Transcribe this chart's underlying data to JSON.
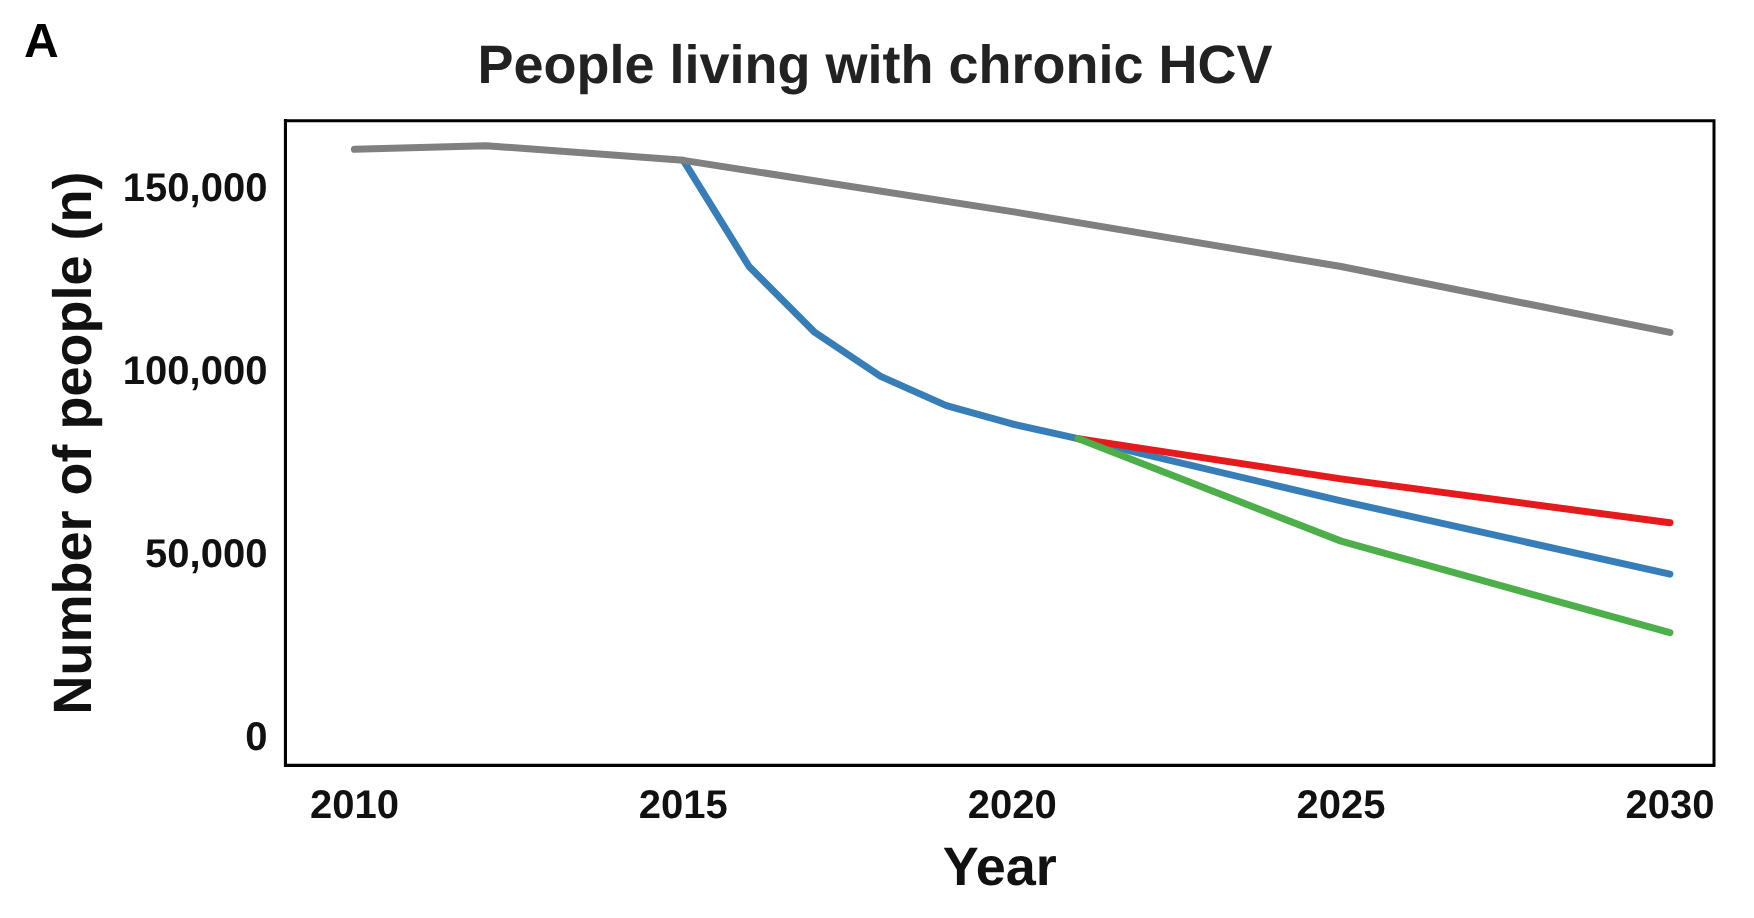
{
  "chart_data": {
    "type": "line",
    "title": "People living with chronic HCV",
    "xlabel": "Year",
    "ylabel": "Number of people (n)",
    "annotations": [
      "A"
    ],
    "xlim": [
      2008.95,
      2030.67
    ],
    "xticks": [
      2010,
      2015,
      2020,
      2025,
      2030
    ],
    "ylim": [
      -7200,
      168800
    ],
    "yticks": [
      0,
      {
        "value": 50000,
        "label": "50,000"
      },
      {
        "value": 100000,
        "label": "100,000"
      },
      {
        "value": 150000,
        "label": "150,000"
      }
    ],
    "grid": false,
    "legend": false,
    "marker": "none",
    "line_style": "solid",
    "series": [
      {
        "color": "#808080",
        "x": [
          2010,
          2012,
          2015,
          2020,
          2025,
          2030
        ],
        "values": [
          161000,
          162000,
          158000,
          144000,
          129000,
          111000
        ]
      },
      {
        "color": "#4daf4a",
        "x": [
          2021,
          2025,
          2030
        ],
        "values": [
          82000,
          54000,
          29000
        ]
      },
      {
        "color": "#e41a1c",
        "x": [
          2021,
          2025,
          2030
        ],
        "values": [
          82000,
          71000,
          59000
        ]
      },
      {
        "color": "#377eb8",
        "x": [
          2015,
          2016,
          2017,
          2018,
          2019,
          2020,
          2021,
          2025,
          2030
        ],
        "values": [
          158000,
          129000,
          111000,
          99000,
          91000,
          86000,
          82000,
          65000,
          45000
        ]
      }
    ]
  }
}
